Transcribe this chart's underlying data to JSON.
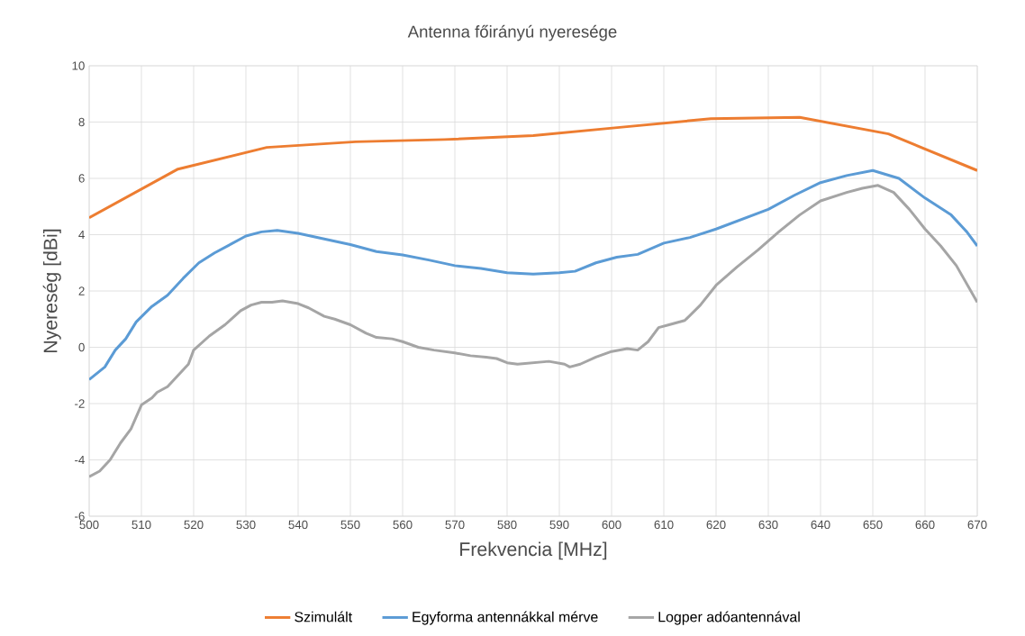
{
  "chart_data": {
    "type": "line",
    "title": "Antenna főirányú nyeresége",
    "xlabel": "Frekvencia [MHz]",
    "ylabel": "Nyereség [dBi]",
    "xlim": [
      500,
      670
    ],
    "xticks": [
      500,
      510,
      520,
      530,
      540,
      550,
      560,
      570,
      580,
      590,
      600,
      610,
      620,
      630,
      640,
      650,
      660,
      670
    ],
    "ylim": [
      -6,
      10
    ],
    "yticks": [
      -6,
      -4,
      -2,
      0,
      2,
      4,
      6,
      8,
      10
    ],
    "grid": true,
    "legend": "bottom",
    "marker": "none",
    "line_style": "solid",
    "series": [
      {
        "name": "Szimulált",
        "color": "#ed7d31",
        "x": [
          500,
          517,
          534,
          551,
          568,
          585,
          602,
          619,
          636,
          653,
          670
        ],
        "values": [
          4.6,
          6.33,
          7.1,
          7.3,
          7.38,
          7.52,
          7.82,
          8.12,
          8.17,
          7.58,
          6.28
        ]
      },
      {
        "name": "Egyforma antennákkal mérve",
        "color": "#5b9bd5",
        "x": [
          500,
          503,
          505,
          507,
          509,
          512,
          515,
          518,
          521,
          524,
          527,
          530,
          533,
          536,
          540,
          545,
          550,
          555,
          560,
          565,
          570,
          575,
          580,
          585,
          590,
          593,
          597,
          601,
          605,
          610,
          615,
          620,
          625,
          630,
          635,
          640,
          645,
          650,
          655,
          660,
          665,
          668,
          670
        ],
        "values": [
          -1.15,
          -0.7,
          -0.1,
          0.3,
          0.9,
          1.45,
          1.85,
          2.45,
          3.0,
          3.35,
          3.65,
          3.95,
          4.1,
          4.15,
          4.05,
          3.85,
          3.65,
          3.4,
          3.28,
          3.1,
          2.9,
          2.8,
          2.65,
          2.6,
          2.65,
          2.7,
          3.0,
          3.2,
          3.3,
          3.7,
          3.9,
          4.2,
          4.55,
          4.9,
          5.4,
          5.85,
          6.1,
          6.28,
          6.0,
          5.3,
          4.7,
          4.1,
          3.6
        ]
      },
      {
        "name": "Logper adóantennával",
        "color": "#a5a5a5",
        "x": [
          500,
          502,
          504,
          506,
          508,
          510,
          512,
          513,
          515,
          517,
          519,
          520,
          523,
          526,
          529,
          531,
          533,
          535,
          537,
          540,
          542,
          545,
          547,
          550,
          553,
          555,
          558,
          560,
          563,
          566,
          570,
          573,
          576,
          578,
          580,
          582,
          585,
          588,
          591,
          592,
          594,
          597,
          600,
          603,
          605,
          607,
          609,
          611,
          614,
          617,
          620,
          624,
          628,
          632,
          636,
          640,
          645,
          648,
          651,
          654,
          657,
          660,
          663,
          666,
          670
        ],
        "values": [
          -4.6,
          -4.4,
          -4.0,
          -3.4,
          -2.9,
          -2.05,
          -1.8,
          -1.6,
          -1.4,
          -1.0,
          -0.6,
          -0.1,
          0.4,
          0.8,
          1.3,
          1.5,
          1.6,
          1.6,
          1.65,
          1.55,
          1.4,
          1.1,
          1.0,
          0.8,
          0.5,
          0.35,
          0.3,
          0.2,
          0.0,
          -0.1,
          -0.2,
          -0.3,
          -0.35,
          -0.4,
          -0.55,
          -0.6,
          -0.55,
          -0.5,
          -0.6,
          -0.7,
          -0.6,
          -0.35,
          -0.15,
          -0.05,
          -0.1,
          0.2,
          0.7,
          0.8,
          0.95,
          1.5,
          2.2,
          2.85,
          3.45,
          4.1,
          4.7,
          5.2,
          5.5,
          5.65,
          5.75,
          5.5,
          4.9,
          4.2,
          3.6,
          2.9,
          1.6
        ]
      }
    ]
  }
}
